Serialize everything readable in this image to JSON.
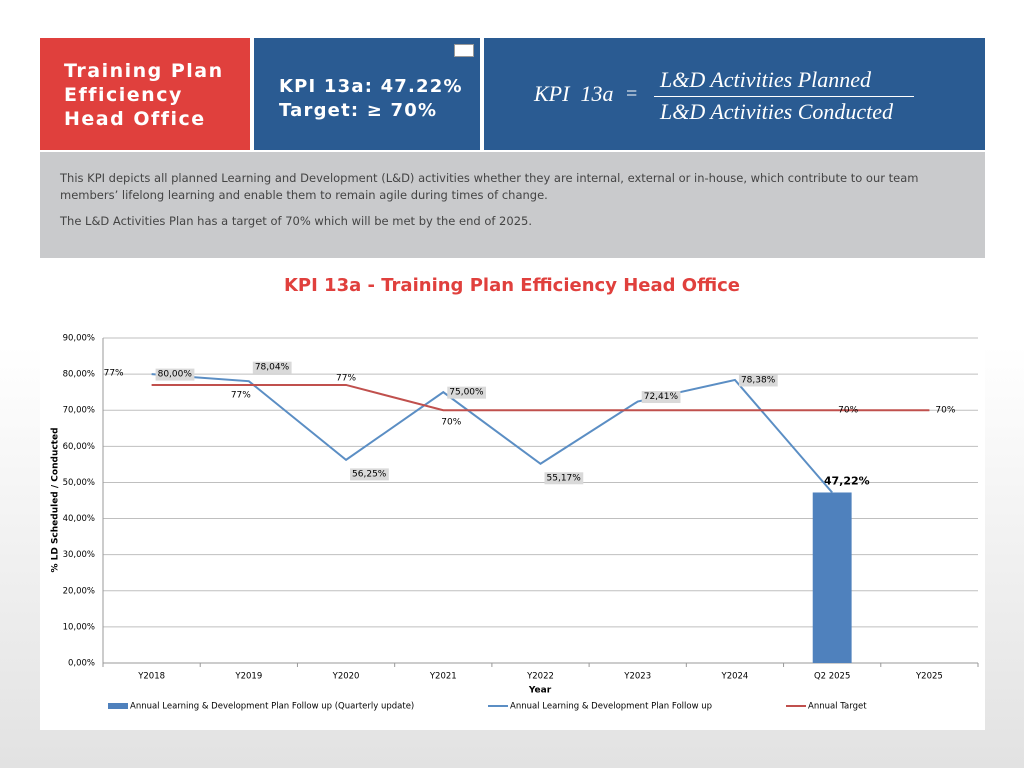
{
  "header": {
    "title_lines": [
      "Training Plan",
      "Efficiency",
      "Head Office"
    ],
    "kpi_lines": [
      "KPI 13a: 47.22%",
      "Target: ≥ 70%"
    ],
    "formula": {
      "name": "KPI  13a",
      "equals": "=",
      "numerator": "L&D Activities Planned",
      "denominator": "L&D Activities Conducted"
    }
  },
  "description": [
    "This KPI depicts all planned Learning and Development (L&D) activities whether they are internal, external or in-house, which contribute to our team members’ lifelong learning and enable them to remain agile during times of change.",
    "The L&D Activities Plan has a target of 70% which will be met by the end of 2025."
  ],
  "chart_data": {
    "type": "combo",
    "title": "KPI 13a - Training Plan Efficiency Head Office",
    "xlabel": "Year",
    "ylabel": "% LD Scheduled / Conducted",
    "categories": [
      "Y2018",
      "Y2019",
      "Y2020",
      "Y2021",
      "Y2022",
      "Y2023",
      "Y2024",
      "Q2 2025",
      "Y2025"
    ],
    "ylim": [
      0,
      90
    ],
    "yticks": [
      {
        "value": 0,
        "label": "0,00%"
      },
      {
        "value": 10,
        "label": "10,00%"
      },
      {
        "value": 20,
        "label": "20,00%"
      },
      {
        "value": 30,
        "label": "30,00%"
      },
      {
        "value": 40,
        "label": "40,00%"
      },
      {
        "value": 50,
        "label": "50,00%"
      },
      {
        "value": 60,
        "label": "60,00%"
      },
      {
        "value": 70,
        "label": "70,00%"
      },
      {
        "value": 80,
        "label": "80,00%"
      },
      {
        "value": 90,
        "label": "90,00%"
      }
    ],
    "grid": true,
    "legend": "bottom",
    "series": [
      {
        "name": "Annual Learning & Development Plan Follow up (Quarterly update)",
        "type": "bar",
        "color": "#4f81bd",
        "values": [
          null,
          null,
          null,
          null,
          null,
          null,
          null,
          47.22,
          null
        ],
        "value_labels": [
          null,
          null,
          null,
          null,
          null,
          null,
          null,
          "47,22%",
          null
        ]
      },
      {
        "name": "Annual Learning & Development Plan Follow up",
        "type": "line",
        "color": "#5b8ec4",
        "values": [
          80,
          78.04,
          56.25,
          75,
          55.17,
          72.41,
          78.38,
          47.22,
          null
        ],
        "value_labels": [
          "80,00%",
          "78,04%",
          "56,25%",
          "75,00%",
          "55,17%",
          "72,41%",
          "78,38%",
          null,
          null
        ]
      },
      {
        "name": "Annual Target",
        "type": "line",
        "color": "#c0504d",
        "values": [
          77,
          77,
          77,
          70,
          70,
          70,
          70,
          70,
          70
        ],
        "value_labels": [
          "77%",
          "77%",
          "77%",
          "70%",
          null,
          null,
          null,
          "70%",
          "70%"
        ]
      }
    ]
  }
}
